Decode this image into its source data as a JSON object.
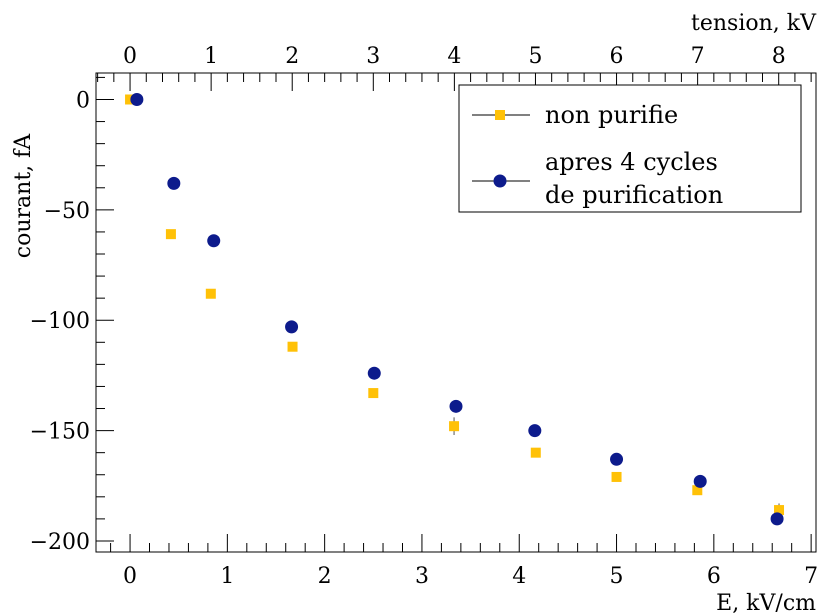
{
  "chart_data": {
    "type": "scatter",
    "xlabel": "E, kV/cm",
    "ylabel": "courant, fA",
    "x2label": "tension, kV",
    "xlim": [
      -0.35,
      7.05
    ],
    "ylim": [
      -205,
      12
    ],
    "x2lim": [
      -0.42,
      8.46
    ],
    "xticks": [
      0,
      1,
      2,
      3,
      4,
      5,
      6,
      7
    ],
    "yticks": [
      0,
      -50,
      -100,
      -150,
      -200
    ],
    "x2ticks": [
      0,
      1,
      2,
      3,
      4,
      5,
      6,
      7,
      8
    ],
    "grid": false,
    "legend_position": "top-right",
    "series": [
      {
        "name": "non purifie",
        "marker": "square",
        "color": "#ffc107",
        "x": [
          0,
          0.42,
          0.83,
          1.67,
          2.5,
          3.33,
          4.17,
          5.0,
          5.83,
          6.67
        ],
        "y": [
          0,
          -61,
          -88,
          -112,
          -133,
          -148,
          -160,
          -171,
          -177,
          -186
        ],
        "yerr": [
          0.5,
          0.8,
          0.8,
          1.0,
          2.0,
          4.0,
          1.0,
          2.0,
          2.0,
          3.0
        ]
      },
      {
        "name_lines": [
          "apres 4 cycles",
          "de purification"
        ],
        "marker": "circle",
        "color": "#0d1b8c",
        "x": [
          0.07,
          0.45,
          0.86,
          1.66,
          2.51,
          3.35,
          4.16,
          5.0,
          5.86,
          6.65
        ],
        "y": [
          0,
          -38,
          -64,
          -103,
          -124,
          -139,
          -150,
          -163,
          -173,
          -190
        ],
        "yerr": [
          0.5,
          0.8,
          0.8,
          1.0,
          1.0,
          1.0,
          1.0,
          1.0,
          1.0,
          2.0
        ]
      }
    ]
  }
}
